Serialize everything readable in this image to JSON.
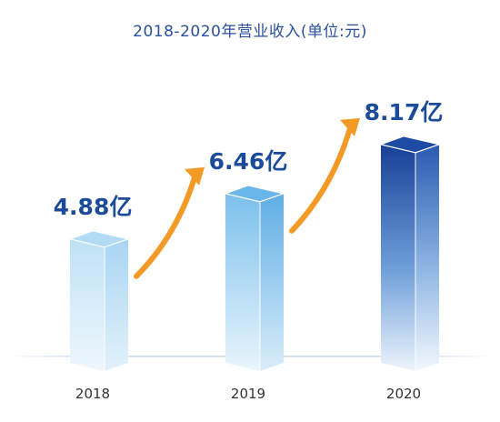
{
  "chart_data": {
    "type": "bar",
    "title": "2018-2020年营业收入(单位:元)",
    "categories": [
      "2018",
      "2019",
      "2020"
    ],
    "values": [
      4.88,
      6.46,
      8.17
    ],
    "value_labels": [
      "4.88亿",
      "6.46亿",
      "8.17亿"
    ],
    "unit": "亿",
    "xlabel": "",
    "ylabel": "",
    "ylim": [
      0,
      9
    ],
    "grid": false,
    "legend": "none",
    "trend_arrows": true,
    "colors": {
      "bar_light_top": "#dff0fb",
      "bar_mid": "#7fc0ec",
      "bar_dark": "#123e94",
      "label": "#1c4b9a",
      "arrow": "#f39a26",
      "baseline": "#c9dbef"
    }
  }
}
